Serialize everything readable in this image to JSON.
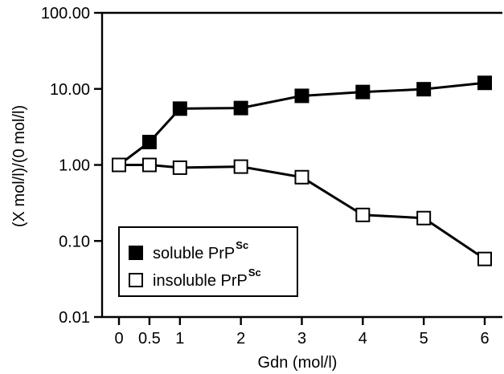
{
  "chart_data": {
    "type": "line",
    "xlabel": "Gdn (mol/l)",
    "ylabel": "(X mol/l)/(0 mol/l)",
    "yscale": "log",
    "ylim": [
      0.01,
      100
    ],
    "xlim": [
      0,
      6
    ],
    "x_ticks": [
      0,
      0.5,
      1,
      2,
      3,
      4,
      5,
      6
    ],
    "x_tick_labels": [
      "0",
      "0.5",
      "1",
      "2",
      "3",
      "4",
      "5",
      "6"
    ],
    "y_ticks": [
      0.01,
      0.1,
      1,
      10,
      100
    ],
    "y_tick_labels": [
      "0.01",
      "0.10",
      "1.00",
      "10.00",
      "100.00"
    ],
    "x": [
      0,
      0.5,
      1,
      2,
      3,
      4,
      5,
      6
    ],
    "series": [
      {
        "name": "soluble PrP",
        "name_superscript": "Sc",
        "marker": "filled-square",
        "values": [
          1.0,
          2.0,
          5.5,
          5.6,
          8.1,
          9.1,
          9.9,
          12.0
        ]
      },
      {
        "name": "insoluble PrP",
        "name_superscript": "Sc",
        "marker": "open-square",
        "values": [
          1.0,
          1.0,
          0.92,
          0.95,
          0.69,
          0.22,
          0.2,
          0.058
        ]
      }
    ],
    "legend_position": "bottom-left",
    "grid": false,
    "colors": {
      "line": "#000000",
      "filled_marker": "#000000",
      "open_marker_fill": "#ffffff"
    }
  }
}
